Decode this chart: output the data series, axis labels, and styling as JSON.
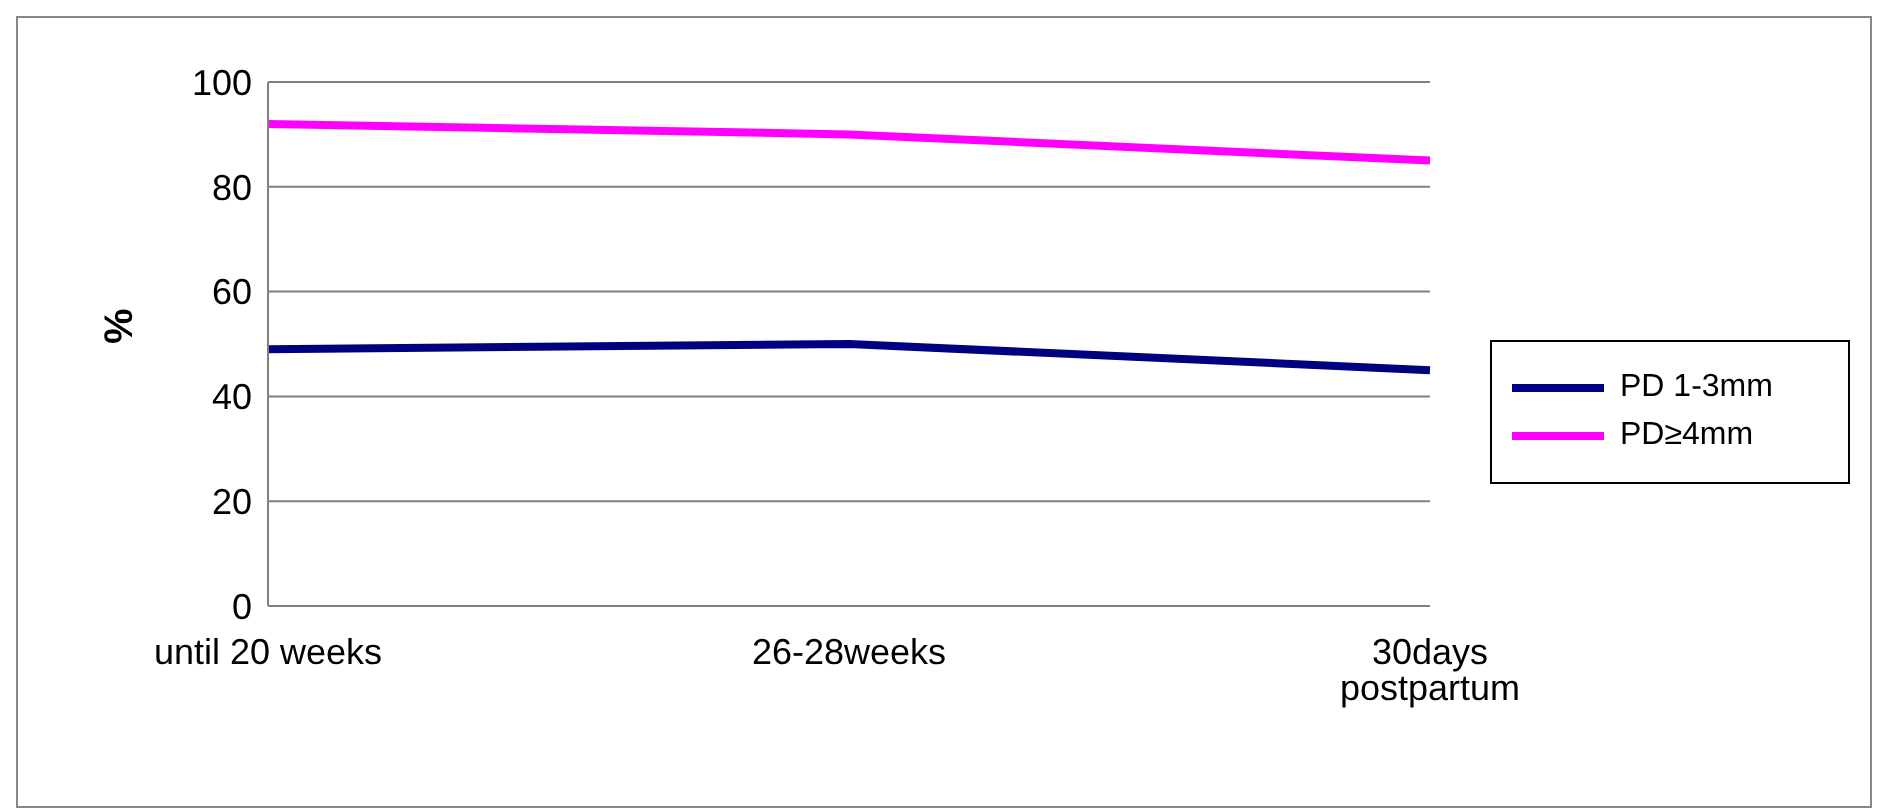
{
  "chart_data": {
    "type": "line",
    "ylabel": "%",
    "categories": [
      "until 20 weeks",
      "26-28weeks",
      "30days postpartum"
    ],
    "series": [
      {
        "name": "PD 1-3mm",
        "color": "#000080",
        "values": [
          49,
          50,
          45
        ]
      },
      {
        "name": "PD≥4mm",
        "color": "#ff00ff",
        "values": [
          92,
          90,
          85
        ]
      }
    ],
    "ylim": [
      0,
      100
    ],
    "yticks": [
      0,
      20,
      40,
      60,
      80,
      100
    ],
    "grid": "y",
    "legend": "right",
    "marker": "none",
    "line_style": "solid"
  }
}
